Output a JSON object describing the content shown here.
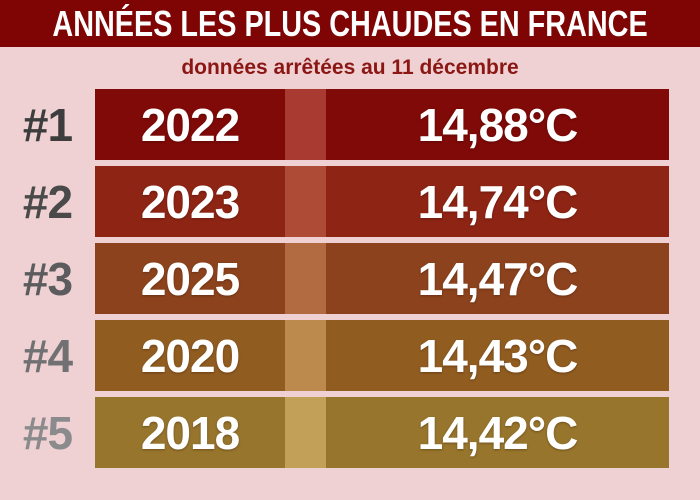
{
  "header": {
    "title": "ANNÉES LES PLUS CHAUDES EN FRANCE"
  },
  "subtitle": "données arrêtées au 11 décembre",
  "colors": {
    "background": "#efd1d3",
    "header_bg": "#7f0505",
    "title_text": "#ffffff",
    "subtitle_text": "#8b1715",
    "value_text": "#ffffff"
  },
  "rows": [
    {
      "rank": "#1",
      "year": "2022",
      "temperature": "14,88°C",
      "bar_color": "#7f0a08",
      "stripe_color": "#a93a32",
      "rank_color": "#3d3d3d"
    },
    {
      "rank": "#2",
      "year": "2023",
      "temperature": "14,74°C",
      "bar_color": "#8e2414",
      "stripe_color": "#ad4b36",
      "rank_color": "#4a4a4a"
    },
    {
      "rank": "#3",
      "year": "2025",
      "temperature": "14,47°C",
      "bar_color": "#8c431d",
      "stripe_color": "#b26a41",
      "rank_color": "#5c5c5e"
    },
    {
      "rank": "#4",
      "year": "2020",
      "temperature": "14,43°C",
      "bar_color": "#905c20",
      "stripe_color": "#bd8a4e",
      "rank_color": "#717173"
    },
    {
      "rank": "#5",
      "year": "2018",
      "temperature": "14,42°C",
      "bar_color": "#97752c",
      "stripe_color": "#c2a057",
      "rank_color": "#8b8b8d"
    }
  ],
  "chart_data": {
    "type": "table",
    "title": "ANNÉES LES PLUS CHAUDES EN FRANCE",
    "subtitle": "données arrêtées au 11 décembre",
    "rows": [
      {
        "rank": 1,
        "year": 2022,
        "temperature_c": 14.88,
        "temperature_label": "14,88°C"
      },
      {
        "rank": 2,
        "year": 2023,
        "temperature_c": 14.74,
        "temperature_label": "14,74°C"
      },
      {
        "rank": 3,
        "year": 2025,
        "temperature_c": 14.47,
        "temperature_label": "14,47°C"
      },
      {
        "rank": 4,
        "year": 2020,
        "temperature_c": 14.43,
        "temperature_label": "14,43°C"
      },
      {
        "rank": 5,
        "year": 2018,
        "temperature_c": 14.42,
        "temperature_label": "14,42°C"
      }
    ],
    "layout_hints": {
      "orientation": "ranked horizontal bars, full-width equal length",
      "color_scale": "dark red (hottest) to golden brown (5th)",
      "legend": "none",
      "grid": "off"
    }
  }
}
